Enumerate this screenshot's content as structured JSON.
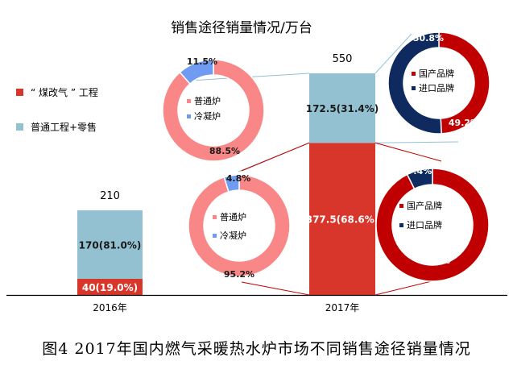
{
  "chart_data": {
    "type": "bar",
    "title": "销售途径销量情况/万台",
    "categories": [
      "2016年",
      "2017年"
    ],
    "totals": [
      210,
      550
    ],
    "totals_labels": [
      "210",
      "550"
    ],
    "series": [
      {
        "name": "“煤改气”工程",
        "color": "#d9362b",
        "values": [
          40,
          377.5
        ],
        "labels": [
          "40(19.0%)",
          "377.5(68.6%)"
        ]
      },
      {
        "name": "普通工程+零售",
        "color": "#93c1d1",
        "values": [
          170,
          172.5
        ],
        "labels": [
          "170(81.0%)",
          "172.5(31.4%)"
        ]
      }
    ],
    "legend": [
      "“ 煤改气 ” 工程",
      "普通工程+零售"
    ],
    "pies": [
      {
        "id": "pie-2017-retail-heater-type",
        "slices": [
          {
            "name": "普通炉",
            "value": 88.5,
            "label": "88.5%",
            "color": "#f98788"
          },
          {
            "name": "冷凝炉",
            "value": 11.5,
            "label": "11.5%",
            "color": "#6f9bf0"
          }
        ]
      },
      {
        "id": "pie-2017-retail-brand",
        "slices": [
          {
            "name": "国产品牌",
            "value": 49.2,
            "label": "49.2%",
            "color": "#c00000"
          },
          {
            "name": "进口品牌",
            "value": 50.8,
            "label": "50.8%",
            "color": "#0e2a5e"
          }
        ]
      },
      {
        "id": "pie-2017-coal-to-gas-heater-type",
        "slices": [
          {
            "name": "普通炉",
            "value": 95.2,
            "label": "95.2%",
            "color": "#f98788"
          },
          {
            "name": "冷凝炉",
            "value": 4.8,
            "label": "4.8%",
            "color": "#6f9bf0"
          }
        ]
      },
      {
        "id": "pie-2017-coal-to-gas-brand",
        "slices": [
          {
            "name": "国产品牌",
            "value": 92.6,
            "label": "92.6%",
            "color": "#c00000"
          },
          {
            "name": "进口品牌",
            "value": 7.4,
            "label": "7.4%",
            "color": "#0e2a5e"
          }
        ]
      }
    ]
  },
  "caption": "图4  2017年国内燃气采暖热水炉市场不同销售途径销量情况"
}
